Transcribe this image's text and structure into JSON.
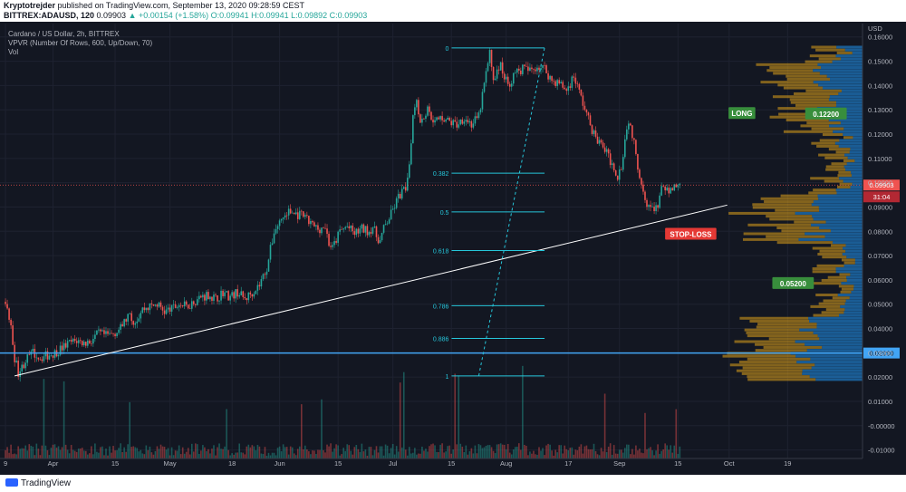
{
  "header": {
    "publisher": "Kryptotrejder",
    "published_text": "published on TradingView.com, September 13, 2020 09:28:59 CEST",
    "symbol": "BITTREX:ADAUSD, 120",
    "last": "0.09903",
    "change": "▲ +0.00154 (+1.58%)",
    "ohlc": "O:0.09941 H:0.09941 L:0.09892 C:0.09903"
  },
  "legend": {
    "line1": "Cardano / US Dollar, 2h, BITTREX",
    "line2": "VPVR (Number Of Rows, 600, Up/Down, 70)",
    "line3": "Vol"
  },
  "footer": {
    "brand": "TradingView"
  },
  "colors": {
    "background": "#131722",
    "up": "#26a69a",
    "down": "#ef5350",
    "vpvr_up": "#2196f3",
    "vpvr_down": "#e0a319",
    "fib": "#26c6da",
    "support_line": "#42a5f5",
    "trend_line": "#ffffff",
    "long_tag": "#388e3c",
    "stoploss_tag": "#e53935"
  },
  "chart_data": {
    "type": "line",
    "instrument": "ADAUSD",
    "interval": "2h",
    "currency": "USD",
    "price_scale": [
      "0.16000",
      "0.15000",
      "0.14000",
      "0.13000",
      "0.12000",
      "0.11000",
      "0.10000",
      "0.09000",
      "0.08000",
      "0.07000",
      "0.06000",
      "0.05000",
      "0.04000",
      "0.03000",
      "0.02000",
      "0.01000",
      "-0.00000",
      "-0.01000"
    ],
    "ylim": [
      -0.0135,
      0.1655
    ],
    "x_ticks": [
      "9",
      "Apr",
      "15",
      "May",
      "18",
      "Jun",
      "15",
      "Jul",
      "15",
      "Aug",
      "17",
      "Sep",
      "15",
      "Oct",
      "19"
    ],
    "x_tick_pos": [
      0.5,
      13.5,
      30.5,
      45.5,
      62.5,
      75.5,
      91.5,
      106.5,
      122.5,
      137.5,
      154.5,
      168.5,
      184.5,
      198.5,
      214.5
    ],
    "x_domain": [
      -1,
      235
    ],
    "series": [
      {
        "points": [
          [
            0,
            0.051
          ],
          [
            1,
            0.048
          ],
          [
            2,
            0.04
          ],
          [
            3,
            0.028
          ],
          [
            4,
            0.022
          ],
          [
            5,
            0.024
          ],
          [
            6,
            0.027
          ],
          [
            8,
            0.03
          ],
          [
            10,
            0.028
          ],
          [
            12,
            0.029
          ],
          [
            14,
            0.03
          ],
          [
            16,
            0.032
          ],
          [
            18,
            0.034
          ],
          [
            20,
            0.035
          ],
          [
            22,
            0.034
          ],
          [
            24,
            0.035
          ],
          [
            26,
            0.038
          ],
          [
            28,
            0.037
          ],
          [
            30,
            0.038
          ],
          [
            32,
            0.04
          ],
          [
            34,
            0.045
          ],
          [
            36,
            0.043
          ],
          [
            38,
            0.048
          ],
          [
            40,
            0.049
          ],
          [
            42,
            0.05
          ],
          [
            44,
            0.047
          ],
          [
            46,
            0.048
          ],
          [
            48,
            0.05
          ],
          [
            50,
            0.049
          ],
          [
            52,
            0.051
          ],
          [
            54,
            0.053
          ],
          [
            56,
            0.054
          ],
          [
            58,
            0.052
          ],
          [
            60,
            0.055
          ],
          [
            62,
            0.053
          ],
          [
            64,
            0.055
          ],
          [
            66,
            0.052
          ],
          [
            68,
            0.055
          ],
          [
            70,
            0.058
          ],
          [
            72,
            0.065
          ],
          [
            74,
            0.08
          ],
          [
            76,
            0.085
          ],
          [
            78,
            0.088
          ],
          [
            80,
            0.087
          ],
          [
            82,
            0.086
          ],
          [
            84,
            0.083
          ],
          [
            86,
            0.081
          ],
          [
            88,
            0.082
          ],
          [
            89,
            0.075
          ],
          [
            90,
            0.073
          ],
          [
            92,
            0.08
          ],
          [
            94,
            0.082
          ],
          [
            96,
            0.079
          ],
          [
            98,
            0.081
          ],
          [
            100,
            0.08
          ],
          [
            101,
            0.082
          ],
          [
            102,
            0.078
          ],
          [
            103,
            0.076
          ],
          [
            104,
            0.081
          ],
          [
            106,
            0.087
          ],
          [
            108,
            0.094
          ],
          [
            110,
            0.098
          ],
          [
            111,
            0.108
          ],
          [
            112,
            0.128
          ],
          [
            113,
            0.135
          ],
          [
            114,
            0.125
          ],
          [
            116,
            0.13
          ],
          [
            118,
            0.125
          ],
          [
            120,
            0.127
          ],
          [
            122,
            0.125
          ],
          [
            124,
            0.124
          ],
          [
            126,
            0.127
          ],
          [
            128,
            0.124
          ],
          [
            130,
            0.127
          ],
          [
            132,
            0.145
          ],
          [
            133,
            0.153
          ],
          [
            134,
            0.143
          ],
          [
            136,
            0.148
          ],
          [
            138,
            0.14
          ],
          [
            140,
            0.145
          ],
          [
            142,
            0.147
          ],
          [
            144,
            0.146
          ],
          [
            146,
            0.148
          ],
          [
            148,
            0.147
          ],
          [
            150,
            0.142
          ],
          [
            152,
            0.141
          ],
          [
            154,
            0.138
          ],
          [
            156,
            0.144
          ],
          [
            158,
            0.135
          ],
          [
            160,
            0.126
          ],
          [
            162,
            0.118
          ],
          [
            164,
            0.115
          ],
          [
            166,
            0.109
          ],
          [
            168,
            0.103
          ],
          [
            169,
            0.107
          ],
          [
            170,
            0.118
          ],
          [
            171,
            0.126
          ],
          [
            172,
            0.12
          ],
          [
            174,
            0.103
          ],
          [
            176,
            0.092
          ],
          [
            178,
            0.088
          ],
          [
            179,
            0.09
          ],
          [
            180,
            0.1
          ],
          [
            181,
            0.095
          ],
          [
            182,
            0.097
          ],
          [
            184,
            0.099
          ],
          [
            185,
            0.09903
          ]
        ]
      }
    ],
    "current_price": "0.09903",
    "countdown": "31:04",
    "horizontal_line_label": "0.02990",
    "horizontal_line_value": 0.0299,
    "trendline": {
      "from": [
        3,
        0.0205
      ],
      "to": [
        198,
        0.0908
      ]
    },
    "fibonacci": {
      "from": [
        130,
        0.0205
      ],
      "to": [
        148,
        0.1555
      ],
      "levels": [
        {
          "label": "0",
          "ratio": 0
        },
        {
          "label": "0.382",
          "ratio": 0.382
        },
        {
          "label": "0.5",
          "ratio": 0.5
        },
        {
          "label": "0.618",
          "ratio": 0.618
        },
        {
          "label": "0.786",
          "ratio": 0.786
        },
        {
          "label": "0.886",
          "ratio": 0.886
        },
        {
          "label": "1",
          "ratio": 1
        }
      ]
    },
    "annotations": [
      {
        "text": "LONG",
        "x": 202,
        "y": 0.1285,
        "color": "#388e3c"
      },
      {
        "text": "0.12200",
        "x": 225,
        "y": 0.1283,
        "color": "#388e3c"
      },
      {
        "text": "STOP-LOSS",
        "x": 188,
        "y": 0.0788,
        "color": "#e53935"
      },
      {
        "text": "0.05200",
        "x": 216,
        "y": 0.0585,
        "color": "#388e3c"
      }
    ]
  }
}
